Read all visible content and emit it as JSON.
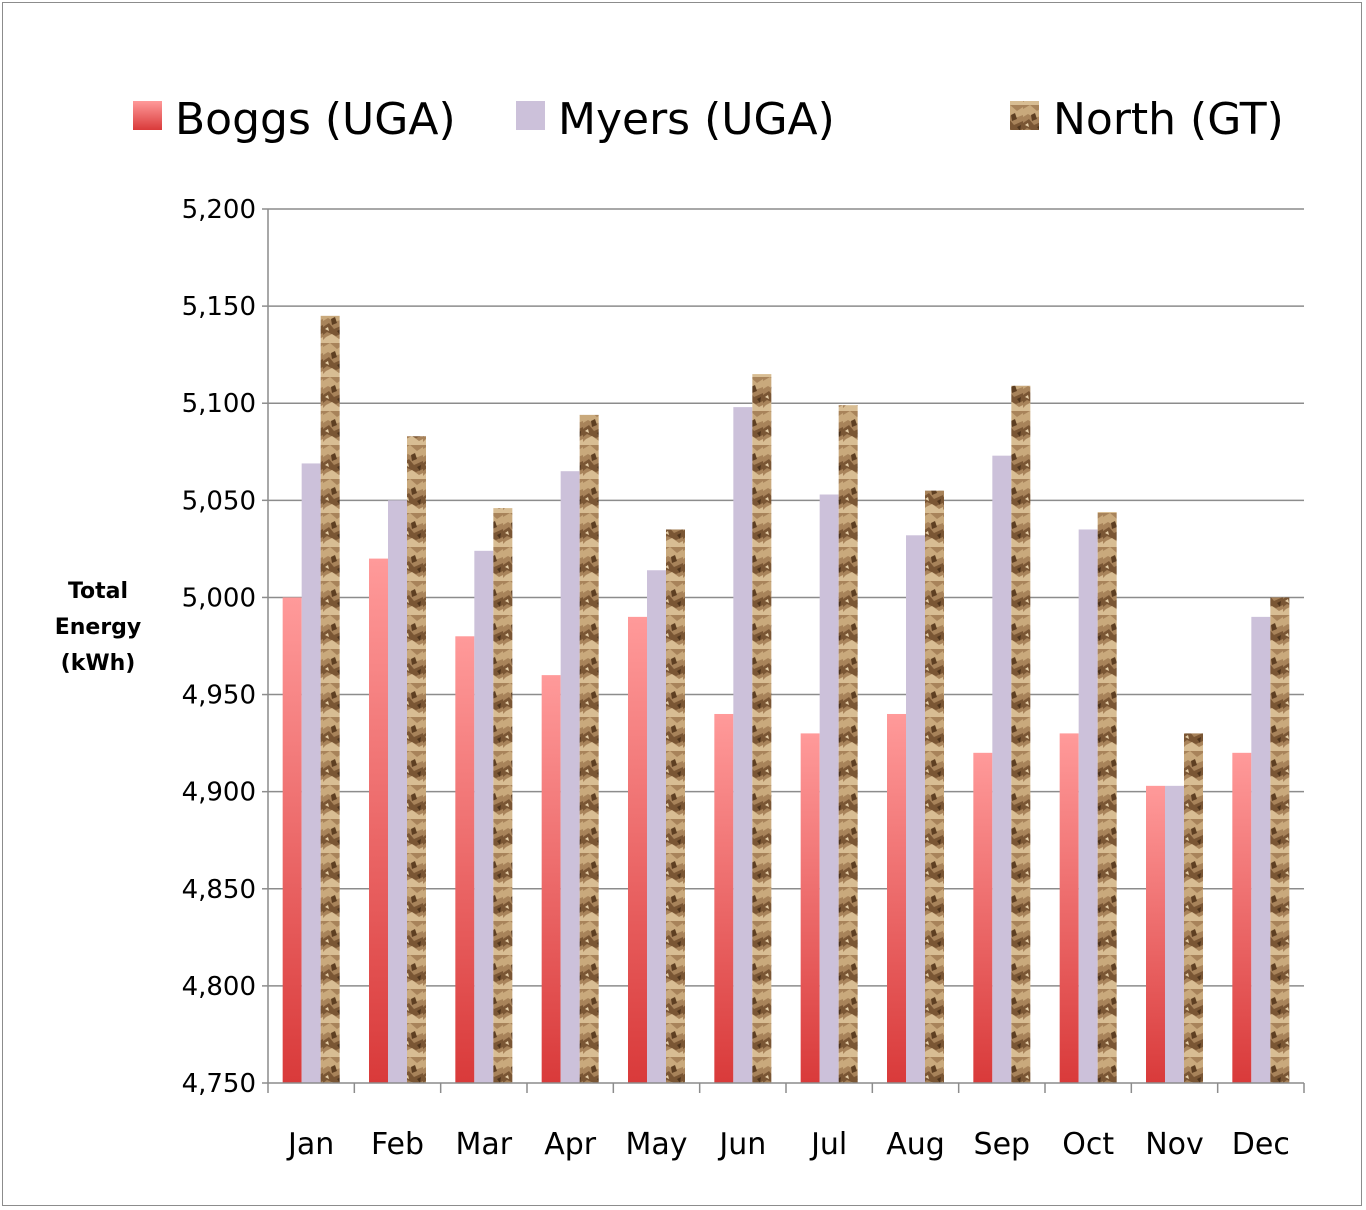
{
  "chart_data": {
    "type": "bar",
    "title": "",
    "xlabel": "",
    "ylabel_lines": [
      "Total",
      "Energy",
      "(kWh)"
    ],
    "ylim": [
      4750,
      5200
    ],
    "ytick_step": 50,
    "ytick_labels": [
      "4,750",
      "4,800",
      "4,850",
      "4,900",
      "4,950",
      "5,000",
      "5,050",
      "5,100",
      "5,150",
      "5,200"
    ],
    "categories": [
      "Jan",
      "Feb",
      "Mar",
      "Apr",
      "May",
      "Jun",
      "Jul",
      "Aug",
      "Sep",
      "Oct",
      "Nov",
      "Dec"
    ],
    "grid": true,
    "legend_position": "top",
    "series": [
      {
        "name": "Boggs (UGA)",
        "fill": "red-gradient",
        "color_top": "#ff9a9a",
        "color_bottom": "#d93a3a",
        "values": [
          5000,
          5020,
          4980,
          4960,
          4990,
          4940,
          4930,
          4940,
          4920,
          4930,
          4903,
          4920
        ]
      },
      {
        "name": "Myers (UGA)",
        "fill": "solid",
        "color": "#ccc1da",
        "values": [
          5069,
          5050,
          5024,
          5065,
          5014,
          5098,
          5053,
          5032,
          5073,
          5035,
          4903,
          4990
        ]
      },
      {
        "name": "North (GT)",
        "fill": "paper-bag-texture",
        "color": "#a07b52",
        "values": [
          5145,
          5083,
          5046,
          5094,
          5035,
          5115,
          5099,
          5055,
          5109,
          5044,
          4930,
          5000
        ]
      }
    ]
  }
}
